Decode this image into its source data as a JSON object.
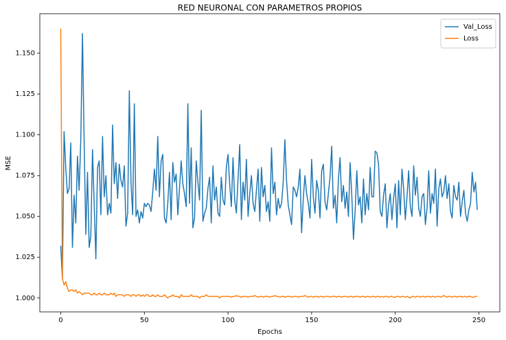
{
  "chart_data": {
    "type": "line",
    "title": "RED NEURONAL CON PARAMETROS PROPIOS",
    "x_label": "Epochs",
    "y_label": "MSE",
    "x": [
      0,
      1,
      2,
      3,
      4,
      5,
      6,
      7,
      8,
      9,
      10,
      11,
      12,
      13,
      14,
      15,
      16,
      17,
      18,
      19,
      20,
      21,
      22,
      23,
      24,
      25,
      26,
      27,
      28,
      29,
      30,
      31,
      32,
      33,
      34,
      35,
      36,
      37,
      38,
      39,
      40,
      41,
      42,
      43,
      44,
      45,
      46,
      47,
      48,
      49,
      50,
      51,
      52,
      53,
      54,
      55,
      56,
      57,
      58,
      59,
      60,
      61,
      62,
      63,
      64,
      65,
      66,
      67,
      68,
      69,
      70,
      71,
      72,
      73,
      74,
      75,
      76,
      77,
      78,
      79,
      80,
      81,
      82,
      83,
      84,
      85,
      86,
      87,
      88,
      89,
      90,
      91,
      92,
      93,
      94,
      95,
      96,
      97,
      98,
      99,
      100,
      101,
      102,
      103,
      104,
      105,
      106,
      107,
      108,
      109,
      110,
      111,
      112,
      113,
      114,
      115,
      116,
      117,
      118,
      119,
      120,
      121,
      122,
      123,
      124,
      125,
      126,
      127,
      128,
      129,
      130,
      131,
      132,
      133,
      134,
      135,
      136,
      137,
      138,
      139,
      140,
      141,
      142,
      143,
      144,
      145,
      146,
      147,
      148,
      149,
      150,
      151,
      152,
      153,
      154,
      155,
      156,
      157,
      158,
      159,
      160,
      161,
      162,
      163,
      164,
      165,
      166,
      167,
      168,
      169,
      170,
      171,
      172,
      173,
      174,
      175,
      176,
      177,
      178,
      179,
      180,
      181,
      182,
      183,
      184,
      185,
      186,
      187,
      188,
      189,
      190,
      191,
      192,
      193,
      194,
      195,
      196,
      197,
      198,
      199,
      200,
      201,
      202,
      203,
      204,
      205,
      206,
      207,
      208,
      209,
      210,
      211,
      212,
      213,
      214,
      215,
      216,
      217,
      218,
      219,
      220,
      221,
      222,
      223,
      224,
      225,
      226,
      227,
      228,
      229,
      230,
      231,
      232,
      233,
      234,
      235,
      236,
      237,
      238,
      239,
      240,
      241,
      242,
      243,
      244,
      245,
      246,
      247,
      248,
      249
    ],
    "series": [
      {
        "name": "Val_Loss",
        "color": "#1f77b4",
        "values": [
          1.032,
          1.012,
          1.102,
          1.08,
          1.064,
          1.067,
          1.095,
          1.031,
          1.063,
          1.046,
          1.087,
          1.066,
          1.097,
          1.162,
          1.095,
          1.039,
          1.077,
          1.031,
          1.038,
          1.091,
          1.058,
          1.024,
          1.08,
          1.084,
          1.051,
          1.099,
          1.062,
          1.075,
          1.051,
          1.058,
          1.052,
          1.106,
          1.07,
          1.083,
          1.061,
          1.082,
          1.072,
          1.068,
          1.081,
          1.044,
          1.052,
          1.127,
          1.071,
          1.051,
          1.119,
          1.05,
          1.054,
          1.046,
          1.053,
          1.049,
          1.058,
          1.056,
          1.058,
          1.057,
          1.053,
          1.065,
          1.079,
          1.066,
          1.099,
          1.062,
          1.084,
          1.088,
          1.049,
          1.046,
          1.058,
          1.077,
          1.048,
          1.083,
          1.071,
          1.076,
          1.051,
          1.067,
          1.084,
          1.07,
          1.064,
          1.056,
          1.119,
          1.058,
          1.092,
          1.043,
          1.049,
          1.084,
          1.071,
          1.06,
          1.115,
          1.047,
          1.052,
          1.055,
          1.067,
          1.074,
          1.046,
          1.081,
          1.06,
          1.068,
          1.052,
          1.05,
          1.074,
          1.06,
          1.057,
          1.08,
          1.088,
          1.07,
          1.056,
          1.086,
          1.06,
          1.052,
          1.073,
          1.094,
          1.048,
          1.071,
          1.06,
          1.085,
          1.05,
          1.064,
          1.075,
          1.058,
          1.053,
          1.066,
          1.079,
          1.047,
          1.08,
          1.062,
          1.069,
          1.053,
          1.059,
          1.047,
          1.092,
          1.064,
          1.071,
          1.051,
          1.061,
          1.055,
          1.058,
          1.071,
          1.097,
          1.072,
          1.057,
          1.051,
          1.045,
          1.068,
          1.066,
          1.062,
          1.068,
          1.079,
          1.04,
          1.061,
          1.075,
          1.064,
          1.058,
          1.049,
          1.085,
          1.062,
          1.052,
          1.072,
          1.066,
          1.049,
          1.078,
          1.082,
          1.059,
          1.054,
          1.064,
          1.074,
          1.093,
          1.055,
          1.063,
          1.046,
          1.073,
          1.086,
          1.059,
          1.069,
          1.055,
          1.065,
          1.05,
          1.083,
          1.063,
          1.036,
          1.053,
          1.078,
          1.057,
          1.062,
          1.046,
          1.073,
          1.051,
          1.064,
          1.054,
          1.08,
          1.062,
          1.062,
          1.09,
          1.089,
          1.082,
          1.053,
          1.05,
          1.063,
          1.07,
          1.043,
          1.057,
          1.064,
          1.048,
          1.061,
          1.07,
          1.043,
          1.072,
          1.051,
          1.079,
          1.067,
          1.048,
          1.062,
          1.078,
          1.056,
          1.05,
          1.081,
          1.063,
          1.074,
          1.055,
          1.05,
          1.062,
          1.064,
          1.045,
          1.055,
          1.078,
          1.052,
          1.064,
          1.058,
          1.079,
          1.044,
          1.067,
          1.073,
          1.062,
          1.065,
          1.075,
          1.061,
          1.07,
          1.053,
          1.049,
          1.069,
          1.062,
          1.06,
          1.071,
          1.05,
          1.059,
          1.066,
          1.052,
          1.047,
          1.054,
          1.058,
          1.077,
          1.065,
          1.071,
          1.054
        ]
      },
      {
        "name": "Loss",
        "color": "#ff7f0e",
        "values": [
          1.165,
          1.012,
          1.008,
          1.01,
          1.006,
          1.004,
          1.005,
          1.005,
          1.004,
          1.005,
          1.003,
          1.004,
          1.003,
          1.002,
          1.003,
          1.003,
          1.003,
          1.003,
          1.002,
          1.002,
          1.003,
          1.002,
          1.002,
          1.003,
          1.002,
          1.002,
          1.003,
          1.002,
          1.002,
          1.002,
          1.003,
          1.002,
          1.003,
          1.001,
          1.002,
          1.002,
          1.002,
          1.002,
          1.001,
          1.002,
          1.002,
          1.002,
          1.001,
          1.002,
          1.002,
          1.001,
          1.002,
          1.002,
          1.001,
          1.002,
          1.001,
          1.002,
          1.002,
          1.001,
          1.001,
          1.002,
          1.001,
          1.001,
          1.002,
          1.001,
          1.001,
          1.001,
          1.002,
          1.001,
          1.0,
          1.001,
          1.001,
          1.002,
          1.001,
          1.001,
          1.001,
          1.0,
          1.002,
          1.001,
          1.001,
          1.001,
          1.001,
          1.001,
          1.002,
          1.001,
          1.001,
          1.001,
          1.001,
          1.0,
          1.001,
          1.001,
          1.001,
          1.002,
          1.001,
          1.001,
          1.001,
          1.001,
          1.001,
          1.001,
          1.001,
          1.0,
          1.001,
          1.001,
          1.001,
          1.001,
          1.001,
          1.001,
          1.0005,
          1.001,
          1.001,
          1.0015,
          1.001,
          1.001,
          1.0005,
          1.001,
          1.001,
          1.001,
          1.0005,
          1.001,
          1.001,
          1.001,
          1.0015,
          1.001,
          1.0005,
          1.001,
          1.001,
          1.0005,
          1.001,
          1.001,
          1.001,
          1.0005,
          1.001,
          1.001,
          1.0015,
          1.001,
          1.001,
          1.0005,
          1.001,
          1.001,
          1.0005,
          1.001,
          1.001,
          1.001,
          1.0005,
          1.001,
          1.001,
          1.001,
          1.0005,
          1.001,
          1.001,
          1.001,
          1.0015,
          1.001,
          1.0005,
          1.001,
          1.001,
          1.0005,
          1.001,
          1.001,
          1.0005,
          1.001,
          1.001,
          1.0005,
          1.001,
          1.001,
          1.001,
          1.0005,
          1.001,
          1.001,
          1.001,
          1.0005,
          1.001,
          1.001,
          1.0005,
          1.001,
          1.001,
          1.001,
          1.0005,
          1.001,
          1.001,
          1.0005,
          1.001,
          1.001,
          1.001,
          1.0005,
          1.001,
          1.001,
          1.0005,
          1.001,
          1.001,
          1.0005,
          1.001,
          1.001,
          1.0005,
          1.001,
          1.001,
          1.0005,
          1.001,
          1.0005,
          1.001,
          1.001,
          1.0005,
          1.001,
          1.001,
          1.0005,
          1.0005,
          1.001,
          1.001,
          1.0005,
          1.001,
          1.001,
          1.0005,
          1.001,
          1.0005,
          1.0,
          1.001,
          1.001,
          1.0005,
          1.001,
          1.001,
          1.0005,
          1.001,
          1.001,
          1.0005,
          1.001,
          1.001,
          1.0005,
          1.001,
          1.001,
          1.0005,
          1.001,
          1.001,
          1.0005,
          1.001,
          1.0015,
          1.001,
          1.0005,
          1.001,
          1.001,
          1.0005,
          1.001,
          1.001,
          1.0005,
          1.001,
          1.001,
          1.0005,
          1.001,
          1.001,
          1.0005,
          1.001,
          1.001,
          1.0005,
          1.0005,
          1.001,
          1.001
        ]
      }
    ],
    "xlim": [
      -12.5,
      262.5
    ],
    "xticks": [
      0,
      50,
      100,
      150,
      200,
      250
    ],
    "ylim": [
      0.9915,
      1.1742
    ],
    "yticks": [
      {
        "value": 1,
        "label": "1.000"
      },
      1.025,
      {
        "value": 1.05,
        "label": "1.050"
      },
      1.075,
      {
        "value": 1.1,
        "label": "1.100"
      },
      1.125,
      {
        "value": 1.15,
        "label": "1.150"
      }
    ],
    "grid": false,
    "legend": "upper right"
  }
}
